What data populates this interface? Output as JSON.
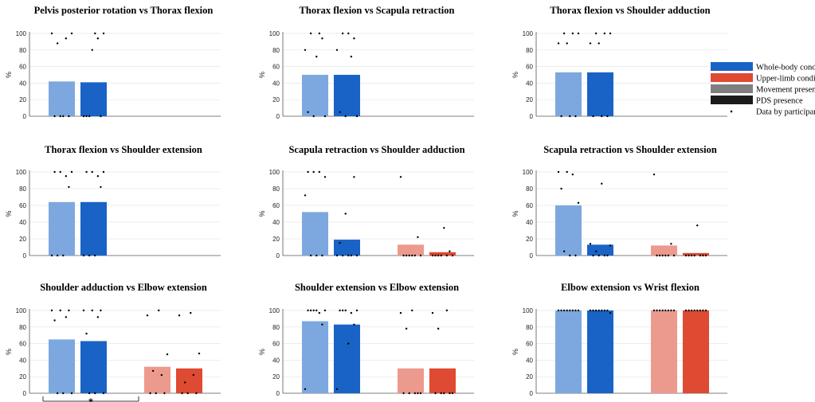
{
  "figure": {
    "ylabel": "%",
    "yticks": [
      0,
      20,
      40,
      60,
      80,
      100
    ],
    "legend": {
      "placement": "right",
      "items": [
        {
          "label": "Whole-body condition",
          "color": "#1a63c6",
          "kind": "swatch"
        },
        {
          "label": "Upper-limb condition",
          "color": "#df4a32",
          "kind": "swatch"
        },
        {
          "label": "Movement presence",
          "color": "#7f7f7f",
          "kind": "swatch"
        },
        {
          "label": "PDS presence",
          "color": "#1b1b1b",
          "kind": "swatch"
        },
        {
          "label": "Data by participant",
          "color": "#000000",
          "kind": "dot"
        }
      ]
    },
    "colors": {
      "whole_body_movement": "#7ca8df",
      "whole_body_pds": "#1a63c6",
      "upper_limb_movement": "#ec9a8d",
      "upper_limb_pds": "#df4a32"
    },
    "significance": {
      "panel": 7,
      "label": "*"
    }
  },
  "chart_data": [
    {
      "type": "bar",
      "title": "Pelvis posterior rotation vs Thorax flexion",
      "ylabel": "%",
      "ylim": [
        0,
        100
      ],
      "series": [
        {
          "name": "Whole-body movement presence",
          "values": [
            42
          ]
        },
        {
          "name": "Whole-body PDS presence",
          "values": [
            41
          ]
        }
      ],
      "participants": [
        [
          100,
          0,
          88,
          0,
          0,
          94,
          0,
          100
        ],
        [
          0,
          0,
          0,
          80,
          100,
          94,
          0,
          100
        ]
      ]
    },
    {
      "type": "bar",
      "title": "Thorax flexion vs Scapula retraction",
      "ylabel": "%",
      "ylim": [
        0,
        100
      ],
      "series": [
        {
          "name": "Whole-body movement presence",
          "values": [
            50
          ]
        },
        {
          "name": "Whole-body PDS presence",
          "values": [
            50
          ]
        }
      ],
      "participants": [
        [
          80,
          5,
          100,
          0,
          72,
          100,
          94,
          0
        ],
        [
          80,
          5,
          100,
          0,
          100,
          72,
          94,
          0
        ]
      ]
    },
    {
      "type": "bar",
      "title": "Thorax flexion vs Shoulder adduction",
      "ylabel": "%",
      "ylim": [
        0,
        100
      ],
      "series": [
        {
          "name": "Whole-body movement presence",
          "values": [
            53
          ]
        },
        {
          "name": "Whole-body PDS presence",
          "values": [
            53
          ]
        }
      ],
      "participants": [
        [
          88,
          0,
          100,
          88,
          0,
          100,
          0,
          100
        ],
        [
          88,
          0,
          100,
          88,
          0,
          100,
          0,
          100
        ]
      ]
    },
    {
      "type": "bar",
      "title": "Thorax flexion vs Shoulder extension",
      "ylabel": "%",
      "ylim": [
        0,
        100
      ],
      "series": [
        {
          "name": "Whole-body movement presence",
          "values": [
            64
          ]
        },
        {
          "name": "Whole-body PDS presence",
          "values": [
            64
          ]
        }
      ],
      "participants": [
        [
          0,
          100,
          0,
          100,
          0,
          95,
          82,
          100
        ],
        [
          0,
          100,
          0,
          100,
          0,
          95,
          82,
          100
        ]
      ]
    },
    {
      "type": "bar",
      "title": "Scapula retraction vs Shoulder adduction",
      "ylabel": "%",
      "ylim": [
        0,
        100
      ],
      "series": [
        {
          "name": "Whole-body movement presence",
          "values": [
            52,
            null
          ]
        },
        {
          "name": "Whole-body PDS presence",
          "values": [
            19,
            null
          ]
        },
        {
          "name": "Upper-limb movement presence",
          "values": [
            null,
            13
          ]
        },
        {
          "name": "Upper-limb PDS presence",
          "values": [
            null,
            4
          ]
        }
      ],
      "participants": [
        [
          72,
          100,
          0,
          100,
          0,
          100,
          0,
          94
        ],
        [
          0,
          15,
          0,
          50,
          0,
          0,
          94,
          0
        ],
        [
          94,
          0,
          0,
          0,
          0,
          0,
          22,
          0
        ],
        [
          0,
          0,
          0,
          0,
          33,
          0,
          5,
          0
        ]
      ]
    },
    {
      "type": "bar",
      "title": "Scapula retraction vs Shoulder extension",
      "ylabel": "%",
      "ylim": [
        0,
        100
      ],
      "series": [
        {
          "name": "Whole-body movement presence",
          "values": [
            60,
            null
          ]
        },
        {
          "name": "Whole-body PDS presence",
          "values": [
            13,
            null
          ]
        },
        {
          "name": "Upper-limb movement presence",
          "values": [
            null,
            12
          ]
        },
        {
          "name": "Upper-limb PDS presence",
          "values": [
            null,
            3
          ]
        }
      ],
      "participants": [
        [
          100,
          80,
          5,
          100,
          0,
          97,
          0,
          63
        ],
        [
          14,
          0,
          5,
          0,
          86,
          0,
          0,
          12
        ],
        [
          97,
          0,
          0,
          0,
          0,
          0,
          14,
          0
        ],
        [
          0,
          0,
          0,
          0,
          36,
          0,
          0,
          0
        ]
      ]
    },
    {
      "type": "bar",
      "title": "Shoulder adduction vs Elbow extension",
      "ylabel": "%",
      "ylim": [
        0,
        100
      ],
      "series": [
        {
          "name": "Whole-body movement presence",
          "values": [
            65,
            null
          ]
        },
        {
          "name": "Whole-body PDS presence",
          "values": [
            63,
            null
          ]
        },
        {
          "name": "Upper-limb movement presence",
          "values": [
            null,
            32
          ]
        },
        {
          "name": "Upper-limb PDS presence",
          "values": [
            null,
            30
          ]
        }
      ],
      "participants": [
        [
          100,
          88,
          0,
          100,
          0,
          92,
          100,
          0
        ],
        [
          100,
          72,
          0,
          100,
          0,
          92,
          100,
          0
        ],
        [
          94,
          0,
          27,
          0,
          100,
          22,
          0,
          47
        ],
        [
          94,
          0,
          13,
          0,
          97,
          22,
          0,
          48
        ]
      ]
    },
    {
      "type": "bar",
      "title": "Shoulder extension vs Elbow extension",
      "ylabel": "%",
      "ylim": [
        0,
        100
      ],
      "series": [
        {
          "name": "Whole-body movement presence",
          "values": [
            87,
            null
          ]
        },
        {
          "name": "Whole-body PDS presence",
          "values": [
            83,
            null
          ]
        },
        {
          "name": "Upper-limb movement presence",
          "values": [
            null,
            30
          ]
        },
        {
          "name": "Upper-limb PDS presence",
          "values": [
            null,
            30
          ]
        }
      ],
      "participants": [
        [
          5,
          100,
          100,
          100,
          100,
          97,
          83,
          100
        ],
        [
          5,
          100,
          100,
          100,
          60,
          97,
          83,
          100
        ],
        [
          97,
          0,
          78,
          0,
          100,
          0,
          0,
          0
        ],
        [
          97,
          0,
          78,
          0,
          0,
          100,
          0,
          0
        ]
      ]
    },
    {
      "type": "bar",
      "title": "Elbow extension vs Wrist flexion",
      "ylabel": "%",
      "ylim": [
        0,
        100
      ],
      "series": [
        {
          "name": "Whole-body movement presence",
          "values": [
            100,
            null
          ]
        },
        {
          "name": "Whole-body PDS presence",
          "values": [
            100,
            null
          ]
        },
        {
          "name": "Upper-limb movement presence",
          "values": [
            null,
            100
          ]
        },
        {
          "name": "Upper-limb PDS presence",
          "values": [
            null,
            100
          ]
        }
      ],
      "participants": [
        [
          100,
          100,
          100,
          100,
          100,
          100,
          100,
          100
        ],
        [
          100,
          100,
          100,
          100,
          100,
          100,
          100,
          97
        ],
        [
          100,
          100,
          100,
          100,
          100,
          100,
          100,
          100
        ],
        [
          100,
          100,
          100,
          100,
          100,
          100,
          100,
          100
        ]
      ]
    }
  ]
}
